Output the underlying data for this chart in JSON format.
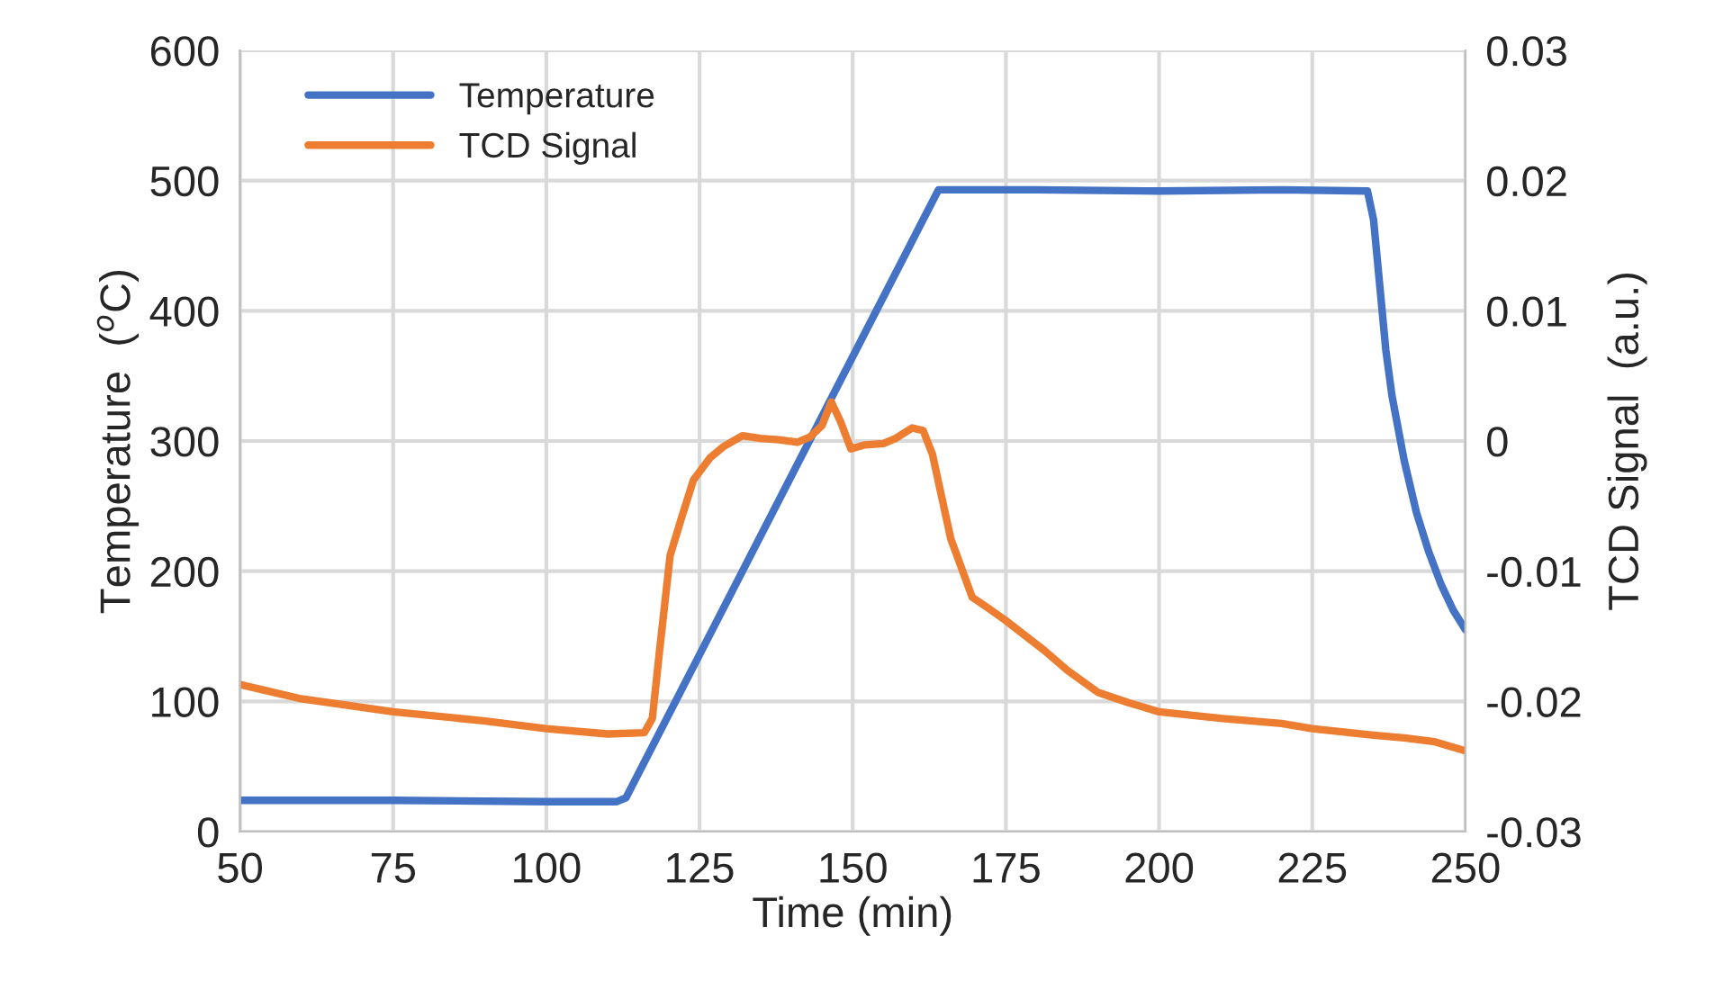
{
  "chart_data": {
    "type": "line",
    "xlabel": "Time (min)",
    "ylabel": "Temperature  ($^{o}$C)",
    "y2label": "TCD Signal  (a.u.)",
    "xlim": [
      50,
      250
    ],
    "xticks": [
      50,
      75,
      100,
      125,
      150,
      175,
      200,
      225,
      250
    ],
    "ylim": [
      0,
      600
    ],
    "yticks": [
      0,
      100,
      200,
      300,
      400,
      500,
      600
    ],
    "y2lim": [
      -0.03,
      0.03
    ],
    "y2ticks": [
      -0.03,
      -0.02,
      -0.01,
      0,
      0.01,
      0.02,
      0.03
    ],
    "grid": true,
    "legend": "top left",
    "marker": "none",
    "line_style": "solid",
    "series": [
      {
        "name": "Temperature",
        "color": "#4472c4",
        "x": [
          50,
          75,
          100,
          111.5,
          113,
          164,
          165,
          180,
          200,
          220,
          234,
          235,
          236,
          237,
          238,
          240,
          242,
          244,
          246,
          248,
          250
        ],
        "values": [
          24,
          24,
          23,
          23,
          26,
          493,
          493,
          493,
          492,
          493,
          492,
          470,
          420,
          370,
          335,
          285,
          245,
          215,
          190,
          170,
          155
        ]
      },
      {
        "name": "TCD Signal",
        "color": "#ed7d31",
        "axis": "y2",
        "x": [
          50,
          60,
          75,
          90,
          100,
          110,
          116,
          117.3,
          118.5,
          120.2,
          122,
          124,
          126.7,
          129,
          132,
          135,
          138,
          141,
          143,
          145,
          146.5,
          148,
          149.7,
          152,
          155,
          157,
          159.7,
          161.5,
          163,
          164.2,
          166,
          169.5,
          172,
          175,
          181.3,
          185,
          190,
          195,
          200,
          210,
          220,
          225,
          235,
          240,
          245,
          250
        ],
        "values": [
          -0.0187,
          -0.0198,
          -0.0208,
          -0.0215,
          -0.0221,
          -0.0225,
          -0.0224,
          -0.0213,
          -0.016,
          -0.0088,
          -0.006,
          -0.003,
          -0.0013,
          -0.0004,
          0.0004,
          0.0002,
          0.0001,
          -0.0001,
          0.0003,
          0.0012,
          0.003,
          0.0015,
          -0.0006,
          -0.0003,
          -0.0002,
          0.0002,
          0.001,
          0.0008,
          -0.001,
          -0.0036,
          -0.0075,
          -0.012,
          -0.0128,
          -0.0138,
          -0.0161,
          -0.0176,
          -0.0193,
          -0.0201,
          -0.0208,
          -0.0213,
          -0.0217,
          -0.0221,
          -0.0226,
          -0.0228,
          -0.0231,
          -0.0238
        ]
      }
    ]
  }
}
